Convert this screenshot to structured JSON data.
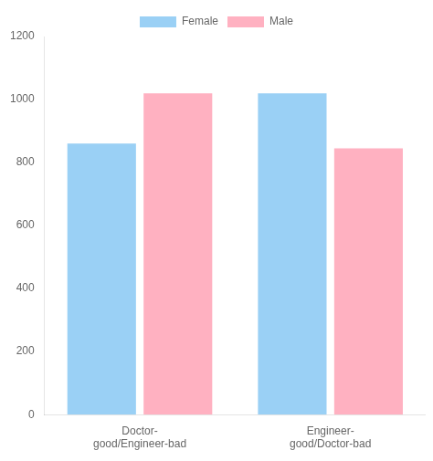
{
  "chart_data": {
    "type": "bar",
    "categories": [
      "Doctor-\ngood/Engineer-bad",
      "Engineer-\ngood/Doctor-bad"
    ],
    "series": [
      {
        "name": "Female",
        "values": [
          860,
          1020
        ]
      },
      {
        "name": "Male",
        "values": [
          1020,
          845
        ]
      }
    ],
    "ylim": [
      0,
      1200
    ],
    "yticks": [
      0,
      200,
      400,
      600,
      800,
      1000,
      1200
    ],
    "grid": false,
    "legend": "top"
  }
}
